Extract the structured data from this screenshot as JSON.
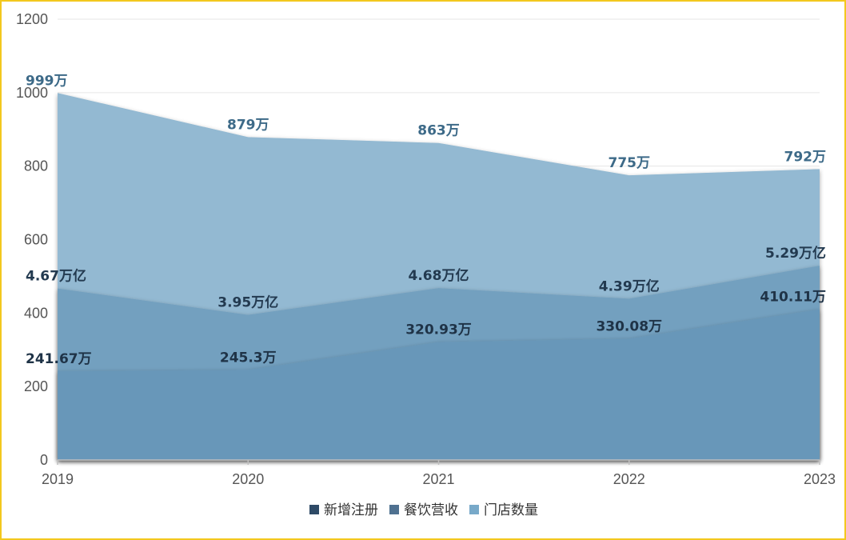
{
  "chart_data": {
    "type": "area",
    "x": [
      "2019",
      "2020",
      "2021",
      "2022",
      "2023"
    ],
    "ylim": [
      0,
      1200
    ],
    "yticks": [
      0,
      200,
      400,
      600,
      800,
      1000,
      1200
    ],
    "grid": true,
    "legend_position": "bottom-center",
    "series": [
      {
        "name": "新增注册",
        "values": [
          241.67,
          245.3,
          320.93,
          330.08,
          410.11
        ],
        "labels": [
          "241.67万",
          "245.3万",
          "320.93万",
          "330.08万",
          "410.11万"
        ],
        "fill": "#6897b9",
        "legend_color": "#2e4a66",
        "label_color": "#1f3347"
      },
      {
        "name": "餐饮营收",
        "values": [
          467,
          395,
          468,
          439,
          529
        ],
        "labels": [
          "4.67万亿",
          "3.95万亿",
          "4.68万亿",
          "4.39万亿",
          "5.29万亿"
        ],
        "fill": "#73a0bf",
        "legend_color": "#4f7190",
        "label_color": "#233a50"
      },
      {
        "name": "门店数量",
        "values": [
          999,
          879,
          863,
          775,
          792
        ],
        "labels": [
          "999万",
          "879万",
          "863万",
          "775万",
          "792万"
        ],
        "fill": "#93b9d2",
        "legend_color": "#78a9c9",
        "label_color": "#3d6a88"
      }
    ]
  }
}
